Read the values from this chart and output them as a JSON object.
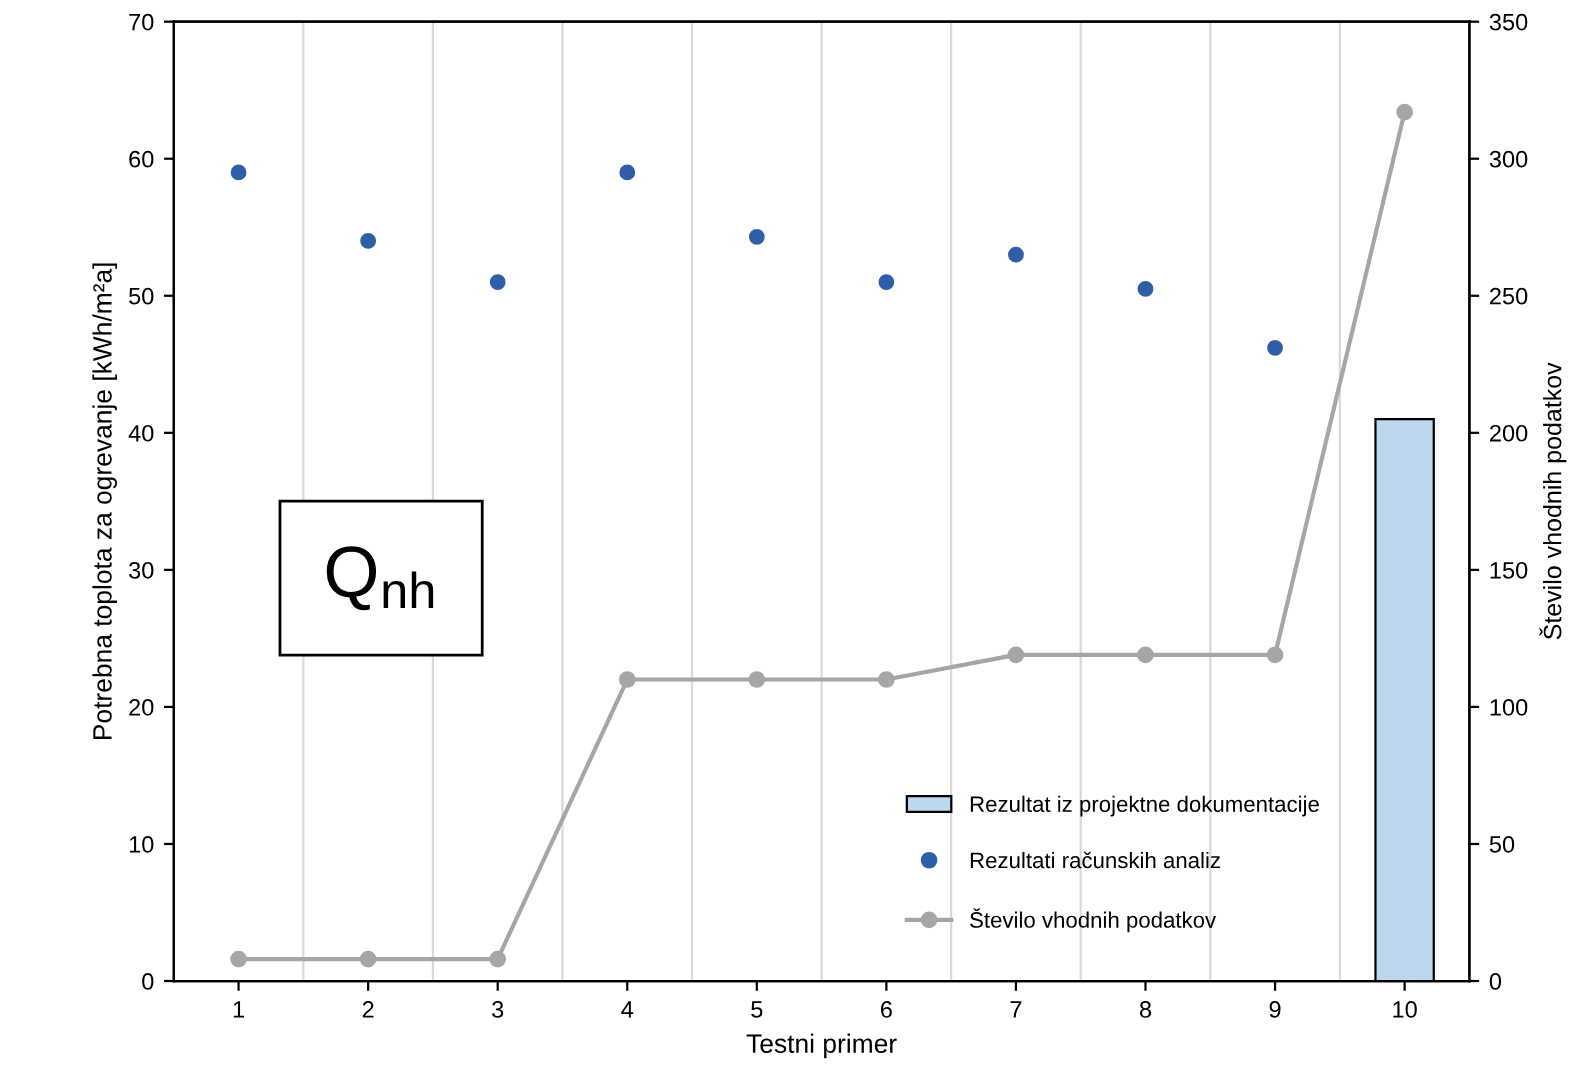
{
  "chart_data": {
    "type": "bar",
    "xlabel": "Testni primer",
    "ylabel": "Potrebna toplota za ogrevanje [kWh/m²a]",
    "y2label": "Število vhodnih podatkov",
    "categories": [
      "1",
      "2",
      "3",
      "4",
      "5",
      "6",
      "7",
      "8",
      "9",
      "10"
    ],
    "series": [
      {
        "name": "Rezultat iz projektne dokumentacije",
        "color": "#bdd7ee",
        "values": [
          null,
          null,
          null,
          null,
          null,
          null,
          null,
          null,
          null,
          41
        ]
      },
      {
        "name": "Rezultati računskih analiz",
        "type": "scatter",
        "color": "#2e5fa8",
        "marker": "circle",
        "values": [
          59,
          54,
          51,
          59,
          54.3,
          51,
          53,
          50.5,
          46.2,
          null
        ]
      },
      {
        "name": "Število vhodnih podatkov",
        "type": "line",
        "axis": "y2",
        "color": "#a6a6a6",
        "marker": "circle",
        "values": [
          8,
          8,
          8,
          110,
          110,
          110,
          119,
          119,
          119,
          317
        ]
      }
    ],
    "ylim": [
      0,
      70
    ],
    "yticks": [
      0,
      10,
      20,
      30,
      40,
      50,
      60,
      70
    ],
    "y2lim": [
      0,
      350
    ],
    "y2ticks": [
      0,
      50,
      100,
      150,
      200,
      250,
      300,
      350
    ],
    "annotations": [
      "Q$_{nh}$"
    ],
    "grid": "x",
    "legend": "bottom right"
  }
}
